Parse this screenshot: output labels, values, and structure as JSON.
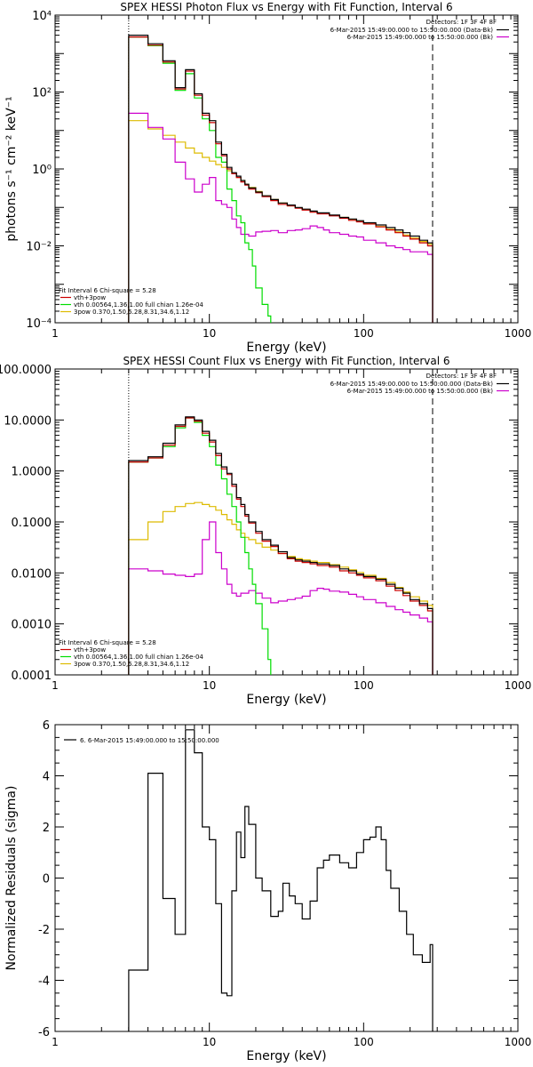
{
  "chart_data": [
    {
      "type": "line",
      "title": "SPEX HESSI Photon Flux vs Energy with Fit Function, Interval 6",
      "xlabel": "Energy (keV)",
      "ylabel": "photons s⁻¹ cm⁻² keV⁻¹",
      "x_scale": "log",
      "y_scale": "log",
      "xlim": [
        1,
        1000
      ],
      "ylim": [
        0.0001,
        10000
      ],
      "x_ticks": [
        "1",
        "10",
        "100",
        "1000"
      ],
      "y_ticks": [
        "10⁻⁴",
        "10⁻²",
        "10⁰",
        "10²",
        "10⁴"
      ],
      "fit_range_keV": [
        3,
        280
      ],
      "legend_top": {
        "placement": "top-right",
        "header": "Detectors: 1F 3F 4F 8F",
        "entries": [
          {
            "label": "6-Mar-2015 15:49:00.000 to 15:50:00.000 (Data-Bk)",
            "color": "#000000"
          },
          {
            "label": "6-Mar-2015 15:49:00.000 to 15:50:00.000 (Bk)",
            "color": "#cc00cc"
          }
        ]
      },
      "legend_bottom": {
        "placement": "bottom-left",
        "header": "Fit Interval 6   Chi-square = 5.28",
        "entries": [
          {
            "label": "vth+3pow",
            "color": "#cc0000"
          },
          {
            "label": "vth 0.00564,1.36,1.00  full chian 1.26e-04",
            "color": "#00dd00"
          },
          {
            "label": "3pow 0.370,1.50,5.28,8.31,34.6,1.12",
            "color": "#ddbb00"
          }
        ]
      },
      "series": [
        {
          "name": "Data-Bk",
          "color": "#000000",
          "step": true,
          "x": [
            3.0,
            4.0,
            5.0,
            6.0,
            7.0,
            8.0,
            9.0,
            10.0,
            11.0,
            12.0,
            13.0,
            14.0,
            15.0,
            16.0,
            17.0,
            18.0,
            20.0,
            22.0,
            25.0,
            28.0,
            32.0,
            36.0,
            40.0,
            45.0,
            50.0,
            60.0,
            70.0,
            80.0,
            90.0,
            100.0,
            120.0,
            140.0,
            160.0,
            180.0,
            200.0,
            230.0,
            260.0,
            280.0
          ],
          "y": [
            3000.0,
            1800.0,
            650.0,
            130.0,
            380.0,
            90.0,
            28.0,
            18.0,
            5.0,
            2.4,
            1.1,
            0.8,
            0.65,
            0.5,
            0.4,
            0.32,
            0.25,
            0.2,
            0.16,
            0.13,
            0.115,
            0.1,
            0.09,
            0.08,
            0.072,
            0.063,
            0.055,
            0.05,
            0.045,
            0.04,
            0.035,
            0.03,
            0.026,
            0.022,
            0.018,
            0.014,
            0.012,
            0.012
          ]
        },
        {
          "name": "vth+3pow",
          "color": "#cc0000",
          "step": true,
          "x": [
            3.0,
            4.0,
            5.0,
            6.0,
            7.0,
            8.0,
            9.0,
            10.0,
            11.0,
            12.0,
            13.0,
            14.0,
            15.0,
            16.0,
            17.0,
            18.0,
            20.0,
            22.0,
            25.0,
            28.0,
            32.0,
            36.0,
            40.0,
            45.0,
            50.0,
            60.0,
            70.0,
            80.0,
            90.0,
            100.0,
            120.0,
            140.0,
            160.0,
            180.0,
            200.0,
            230.0,
            260.0,
            280.0
          ],
          "y": [
            2700.0,
            1650.0,
            600.0,
            120.0,
            350.0,
            82.0,
            25.0,
            16.0,
            4.5,
            2.2,
            1.0,
            0.75,
            0.6,
            0.46,
            0.38,
            0.3,
            0.24,
            0.19,
            0.15,
            0.12,
            0.11,
            0.095,
            0.085,
            0.075,
            0.068,
            0.06,
            0.052,
            0.046,
            0.042,
            0.037,
            0.031,
            0.026,
            0.022,
            0.018,
            0.015,
            0.012,
            0.01,
            0.01
          ]
        },
        {
          "name": "vth",
          "color": "#00dd00",
          "step": true,
          "x": [
            3.0,
            4.0,
            5.0,
            6.0,
            7.0,
            8.0,
            9.0,
            10.0,
            11.0,
            12.0,
            13.0,
            14.0,
            15.0,
            16.0,
            17.0,
            18.0,
            19.0,
            20.0,
            22.0,
            24.0,
            25.0
          ],
          "y": [
            2700.0,
            1600.0,
            560.0,
            110.0,
            300.0,
            70.0,
            20.0,
            10.0,
            2.0,
            1.5,
            0.3,
            0.15,
            0.06,
            0.04,
            0.012,
            0.008,
            0.003,
            0.0008,
            0.0003,
            0.00015,
            0.0001
          ]
        },
        {
          "name": "3pow",
          "color": "#ddbb00",
          "step": true,
          "x": [
            3.0,
            4.0,
            5.0,
            6.0,
            7.0,
            8.0,
            9.0,
            10.0,
            11.0,
            12.0,
            13.0,
            14.0,
            15.0,
            16.0,
            17.0,
            18.0,
            20.0,
            22.0,
            25.0,
            28.0,
            32.0,
            36.0,
            40.0,
            45.0,
            50.0,
            60.0,
            70.0,
            80.0,
            90.0,
            100.0,
            120.0,
            140.0,
            160.0,
            180.0,
            200.0,
            230.0,
            260.0,
            280.0
          ],
          "y": [
            18.0,
            11.0,
            7.5,
            5.0,
            3.5,
            2.6,
            2.0,
            1.6,
            1.3,
            1.1,
            0.9,
            0.75,
            0.6,
            0.5,
            0.4,
            0.33,
            0.26,
            0.2,
            0.16,
            0.13,
            0.11,
            0.098,
            0.088,
            0.079,
            0.071,
            0.062,
            0.055,
            0.049,
            0.043,
            0.038,
            0.032,
            0.027,
            0.023,
            0.019,
            0.016,
            0.013,
            0.011,
            0.011
          ]
        },
        {
          "name": "Bk",
          "color": "#cc00cc",
          "step": true,
          "x": [
            3.0,
            4.0,
            5.0,
            6.0,
            7.0,
            8.0,
            9.0,
            10.0,
            11.0,
            12.0,
            13.0,
            14.0,
            15.0,
            16.0,
            18.0,
            20.0,
            22.0,
            25.0,
            28.0,
            32.0,
            36.0,
            40.0,
            45.0,
            50.0,
            55.0,
            60.0,
            70.0,
            80.0,
            90.0,
            100.0,
            120.0,
            140.0,
            160.0,
            180.0,
            200.0,
            230.0,
            260.0,
            280.0
          ],
          "y": [
            28.0,
            12.0,
            6.0,
            1.5,
            0.55,
            0.25,
            0.4,
            0.6,
            0.15,
            0.12,
            0.1,
            0.05,
            0.03,
            0.02,
            0.018,
            0.023,
            0.024,
            0.025,
            0.022,
            0.025,
            0.026,
            0.028,
            0.033,
            0.03,
            0.026,
            0.022,
            0.02,
            0.018,
            0.017,
            0.014,
            0.012,
            0.01,
            0.009,
            0.008,
            0.007,
            0.007,
            0.006,
            0.006
          ]
        }
      ]
    },
    {
      "type": "line",
      "title": "SPEX HESSI Count Flux vs Energy with Fit Function, Interval 6",
      "xlabel": "Energy (keV)",
      "ylabel": "",
      "x_scale": "log",
      "y_scale": "log",
      "xlim": [
        1,
        1000
      ],
      "ylim": [
        0.0001,
        100
      ],
      "x_ticks": [
        "1",
        "10",
        "100",
        "1000"
      ],
      "y_ticks": [
        "0.0001",
        "0.0010",
        "0.0100",
        "0.1000",
        "1.0000",
        "10.0000",
        "100.0000"
      ],
      "fit_range_keV": [
        3,
        280
      ],
      "legend_top": {
        "placement": "top-right",
        "header": "Detectors: 1F 3F 4F 8F",
        "entries": [
          {
            "label": "6-Mar-2015 15:49:00.000 to 15:50:00.000 (Data-Bk)",
            "color": "#000000"
          },
          {
            "label": "6-Mar-2015 15:49:00.000 to 15:50:00.000 (Bk)",
            "color": "#cc00cc"
          }
        ]
      },
      "legend_bottom": {
        "placement": "bottom-left",
        "header": "Fit Interval 6   Chi-square = 5.28",
        "entries": [
          {
            "label": "vth+3pow",
            "color": "#cc0000"
          },
          {
            "label": "vth 0.00564,1.36,1.00  full chian 1.26e-04",
            "color": "#00dd00"
          },
          {
            "label": "3pow 0.370,1.50,5.28,8.31,34.6,1.12",
            "color": "#ddbb00"
          }
        ]
      },
      "series": [
        {
          "name": "Data-Bk",
          "color": "#000000",
          "step": true,
          "x": [
            3.0,
            4.0,
            5.0,
            6.0,
            7.0,
            8.0,
            9.0,
            10.0,
            11.0,
            12.0,
            13.0,
            14.0,
            15.0,
            16.0,
            17.0,
            18.0,
            20.0,
            22.0,
            25.0,
            28.0,
            32.0,
            36.0,
            40.0,
            45.0,
            50.0,
            60.0,
            70.0,
            80.0,
            90.0,
            100.0,
            120.0,
            140.0,
            160.0,
            180.0,
            200.0,
            230.0,
            260.0,
            280.0
          ],
          "y": [
            1.6,
            1.9,
            3.5,
            8.0,
            11.5,
            10.0,
            6.0,
            4.0,
            2.2,
            1.2,
            0.9,
            0.55,
            0.3,
            0.22,
            0.14,
            0.1,
            0.065,
            0.045,
            0.035,
            0.026,
            0.02,
            0.018,
            0.017,
            0.016,
            0.015,
            0.014,
            0.012,
            0.011,
            0.0095,
            0.0085,
            0.0075,
            0.006,
            0.005,
            0.004,
            0.003,
            0.0025,
            0.002,
            0.002
          ]
        },
        {
          "name": "vth+3pow",
          "color": "#cc0000",
          "step": true,
          "x": [
            3.0,
            4.0,
            5.0,
            6.0,
            7.0,
            8.0,
            9.0,
            10.0,
            11.0,
            12.0,
            13.0,
            14.0,
            15.0,
            16.0,
            17.0,
            18.0,
            20.0,
            22.0,
            25.0,
            28.0,
            32.0,
            36.0,
            40.0,
            45.0,
            50.0,
            60.0,
            70.0,
            80.0,
            90.0,
            100.0,
            120.0,
            140.0,
            160.0,
            180.0,
            200.0,
            230.0,
            260.0,
            280.0
          ],
          "y": [
            1.5,
            1.8,
            3.2,
            7.5,
            11.0,
            9.5,
            5.5,
            3.7,
            2.0,
            1.1,
            0.85,
            0.5,
            0.28,
            0.2,
            0.13,
            0.095,
            0.06,
            0.042,
            0.033,
            0.024,
            0.019,
            0.017,
            0.016,
            0.015,
            0.014,
            0.013,
            0.011,
            0.01,
            0.009,
            0.008,
            0.007,
            0.0055,
            0.0045,
            0.0036,
            0.0028,
            0.0023,
            0.0018,
            0.0018
          ]
        },
        {
          "name": "vth",
          "color": "#00dd00",
          "step": true,
          "x": [
            3.0,
            4.0,
            5.0,
            6.0,
            7.0,
            8.0,
            9.0,
            10.0,
            11.0,
            12.0,
            13.0,
            14.0,
            15.0,
            16.0,
            17.0,
            18.0,
            19.0,
            20.0,
            22.0,
            24.0,
            25.0
          ],
          "y": [
            1.5,
            1.8,
            3.0,
            7.0,
            11.0,
            9.0,
            5.0,
            3.0,
            1.3,
            0.7,
            0.35,
            0.2,
            0.1,
            0.05,
            0.025,
            0.012,
            0.006,
            0.0025,
            0.0008,
            0.0002,
            0.0001
          ]
        },
        {
          "name": "3pow",
          "color": "#ddbb00",
          "step": true,
          "x": [
            3.0,
            4.0,
            5.0,
            6.0,
            7.0,
            8.0,
            9.0,
            10.0,
            11.0,
            12.0,
            13.0,
            14.0,
            15.0,
            16.0,
            17.0,
            18.0,
            20.0,
            22.0,
            25.0,
            28.0,
            32.0,
            36.0,
            40.0,
            45.0,
            50.0,
            60.0,
            70.0,
            80.0,
            90.0,
            100.0,
            120.0,
            140.0,
            160.0,
            180.0,
            200.0,
            230.0,
            260.0,
            280.0
          ],
          "y": [
            0.045,
            0.1,
            0.16,
            0.2,
            0.23,
            0.24,
            0.22,
            0.2,
            0.17,
            0.14,
            0.11,
            0.09,
            0.07,
            0.06,
            0.05,
            0.045,
            0.038,
            0.032,
            0.028,
            0.024,
            0.021,
            0.019,
            0.018,
            0.017,
            0.016,
            0.0145,
            0.013,
            0.0115,
            0.0102,
            0.009,
            0.0078,
            0.0065,
            0.0052,
            0.0042,
            0.0034,
            0.0028,
            0.0023,
            0.0022
          ]
        },
        {
          "name": "Bk",
          "color": "#cc00cc",
          "step": true,
          "x": [
            3.0,
            4.0,
            5.0,
            6.0,
            7.0,
            8.0,
            9.0,
            10.0,
            11.0,
            12.0,
            13.0,
            14.0,
            15.0,
            16.0,
            18.0,
            20.0,
            22.0,
            25.0,
            28.0,
            32.0,
            36.0,
            40.0,
            45.0,
            50.0,
            55.0,
            60.0,
            70.0,
            80.0,
            90.0,
            100.0,
            120.0,
            140.0,
            160.0,
            180.0,
            200.0,
            230.0,
            260.0,
            280.0
          ],
          "y": [
            0.012,
            0.011,
            0.0095,
            0.009,
            0.0085,
            0.0095,
            0.045,
            0.1,
            0.025,
            0.012,
            0.006,
            0.004,
            0.0035,
            0.004,
            0.0045,
            0.004,
            0.0032,
            0.0026,
            0.0028,
            0.003,
            0.0032,
            0.0035,
            0.0045,
            0.005,
            0.0048,
            0.0044,
            0.0042,
            0.0038,
            0.0034,
            0.003,
            0.0026,
            0.0022,
            0.0019,
            0.0017,
            0.0015,
            0.0013,
            0.0011,
            0.0011
          ]
        }
      ]
    },
    {
      "type": "line",
      "title": "",
      "xlabel": "Energy (keV)",
      "ylabel": "Normalized Residuals (sigma)",
      "x_scale": "log",
      "y_scale": "linear",
      "xlim": [
        1,
        1000
      ],
      "ylim": [
        -6,
        6
      ],
      "x_ticks": [
        "1",
        "10",
        "100",
        "1000"
      ],
      "y_ticks": [
        "-6",
        "-4",
        "-2",
        "0",
        "2",
        "4",
        "6"
      ],
      "legend_top": {
        "placement": "top-left",
        "header": "",
        "entries": [
          {
            "label": "6. 6-Mar-2015 15:49:00.000 to 15:50:00.000",
            "color": "#000000"
          }
        ]
      },
      "series": [
        {
          "name": "6. 6-Mar-2015 15:49:00.000 to 15:50:00.000",
          "color": "#000000",
          "step": true,
          "x": [
            3.0,
            4.0,
            5.0,
            6.0,
            7.0,
            8.0,
            9.0,
            10.0,
            11.0,
            12.0,
            13.0,
            14.0,
            15.0,
            16.0,
            17.0,
            18.0,
            20.0,
            22.0,
            25.0,
            28.0,
            30.0,
            33.0,
            36.0,
            40.0,
            45.0,
            50.0,
            55.0,
            60.0,
            70.0,
            80.0,
            90.0,
            100.0,
            110.0,
            120.0,
            130.0,
            140.0,
            150.0,
            170.0,
            190.0,
            210.0,
            240.0,
            270.0,
            280.0
          ],
          "y": [
            -3.6,
            4.1,
            -0.8,
            -2.2,
            5.8,
            4.9,
            2.0,
            1.5,
            -1.0,
            -4.5,
            -4.6,
            -0.5,
            1.8,
            0.8,
            2.8,
            2.1,
            0.0,
            -0.5,
            -1.5,
            -1.3,
            -0.2,
            -0.7,
            -1.0,
            -1.6,
            -0.9,
            0.4,
            0.7,
            0.9,
            0.6,
            0.4,
            1.0,
            1.5,
            1.6,
            2.0,
            1.5,
            0.3,
            -0.4,
            -1.3,
            -2.2,
            -3.0,
            -3.3,
            -2.6,
            -6.0
          ]
        }
      ]
    }
  ]
}
